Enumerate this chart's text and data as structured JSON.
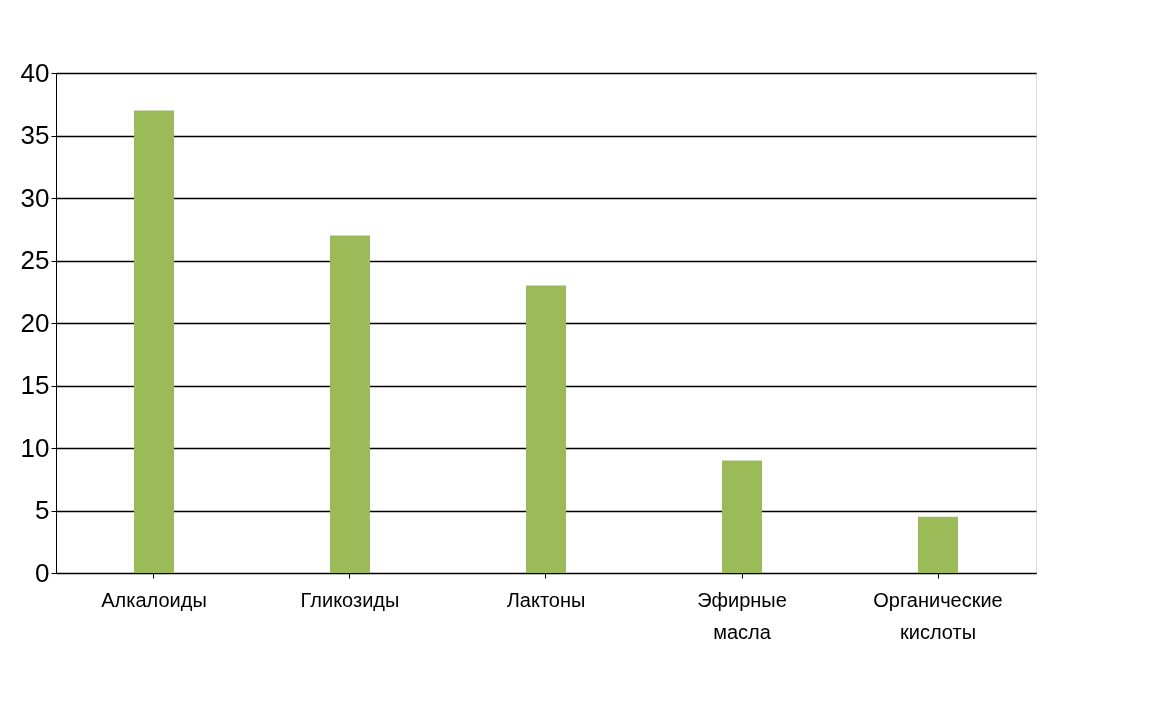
{
  "chart_data": {
    "type": "bar",
    "categories": [
      "Алкалоиды",
      "Гликозиды",
      "Лактоны",
      "Эфирные масла",
      "Органические кислоты"
    ],
    "values": [
      37,
      27,
      23,
      9,
      4.5
    ],
    "color": "#9bbb59",
    "ylim": [
      0,
      40
    ],
    "yticks": [
      0,
      5,
      10,
      15,
      20,
      25,
      30,
      35,
      40
    ],
    "grid": "y"
  }
}
